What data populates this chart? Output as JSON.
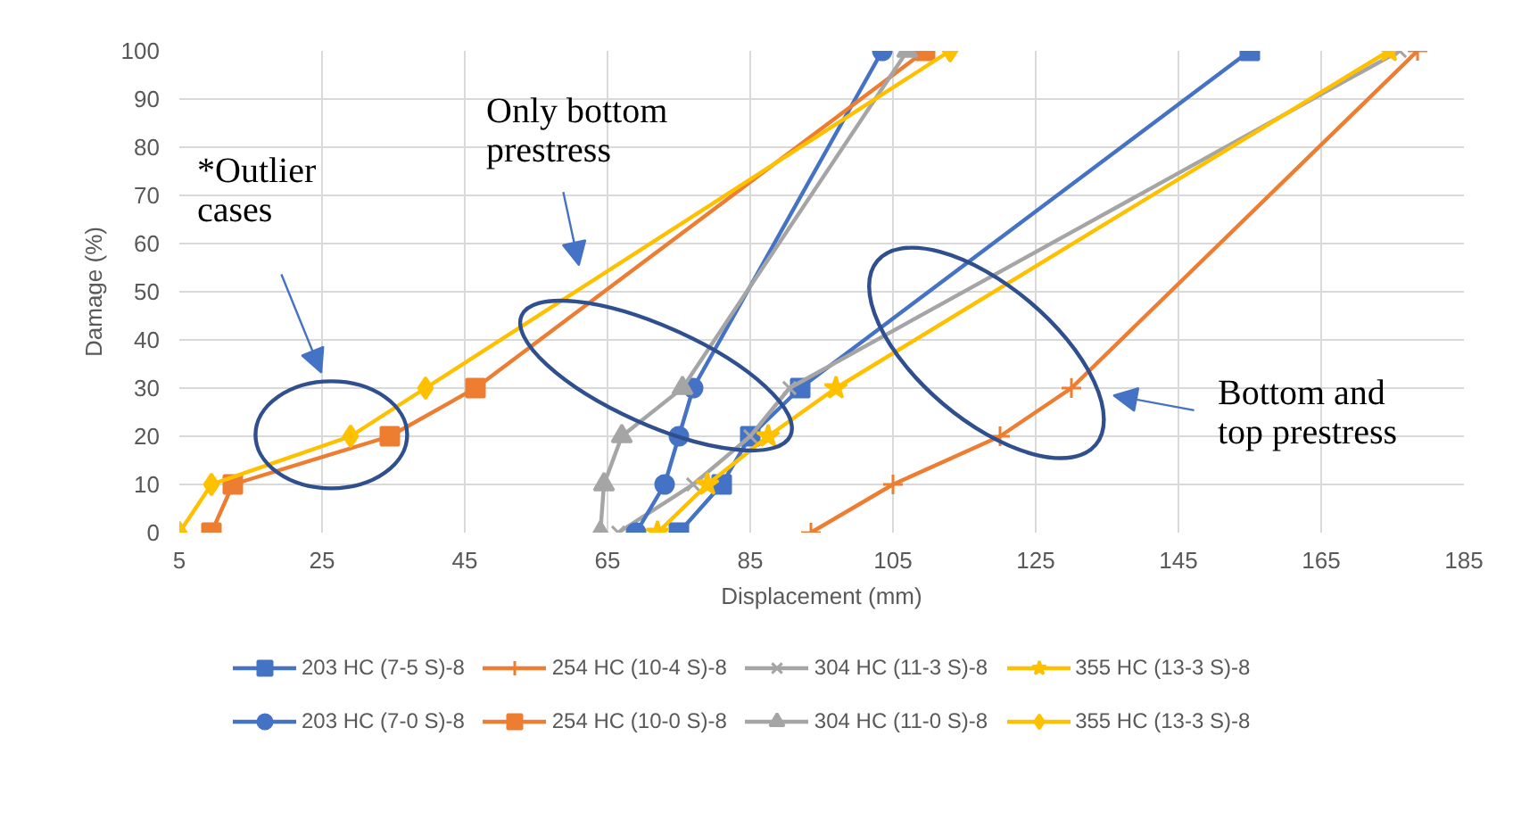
{
  "chart_data": {
    "type": "line",
    "xlabel": "Displacement (mm)",
    "ylabel": "Damage (%)",
    "xlim": [
      5,
      185
    ],
    "xticks": [
      5,
      25,
      45,
      65,
      85,
      105,
      125,
      145,
      165,
      185
    ],
    "ylim": [
      0,
      100
    ],
    "yticks": [
      0,
      10,
      20,
      30,
      40,
      50,
      60,
      70,
      80,
      90,
      100
    ],
    "grid": true,
    "legend": "bottom",
    "annotations": [
      "*Outlier cases",
      "Only bottom prestress",
      "Bottom and top prestress"
    ],
    "series": [
      {
        "name": "203 HC (7-5 S)-8",
        "color": "#4472c4",
        "marker": "square",
        "x": [
          75,
          81,
          85,
          92,
          155
        ],
        "values": [
          0,
          10,
          20,
          30,
          100
        ]
      },
      {
        "name": "254 HC (10-4 S)-8",
        "color": "#ed7d31",
        "marker": "cross",
        "x": [
          93.5,
          105,
          120,
          130,
          178.5
        ],
        "values": [
          0,
          10,
          20,
          30,
          100
        ]
      },
      {
        "name": "304 HC (11-3 S)-8",
        "color": "#a5a5a5",
        "marker": "x",
        "x": [
          66.5,
          77,
          85,
          90.5,
          176
        ],
        "values": [
          0,
          10,
          20,
          30,
          100
        ]
      },
      {
        "name": "355 HC (13-3 S)-8",
        "color": "#ffc000",
        "marker": "star",
        "x": [
          72,
          79,
          87.5,
          97,
          174.5
        ],
        "values": [
          0,
          10,
          20,
          30,
          100
        ]
      },
      {
        "name": "203 HC (7-0 S)-8",
        "color": "#4472c4",
        "marker": "circle",
        "x": [
          69,
          73,
          75,
          77,
          103.5
        ],
        "values": [
          0,
          10,
          20,
          30,
          100
        ]
      },
      {
        "name": "254 HC (10-0 S)-8",
        "color": "#ed7d31",
        "marker": "square",
        "x": [
          9.5,
          12.5,
          34.5,
          46.5,
          109.5
        ],
        "values": [
          0,
          10,
          20,
          30,
          100
        ]
      },
      {
        "name": "304 HC (11-0 S)-8",
        "color": "#a5a5a5",
        "marker": "triangle",
        "x": [
          64,
          64.5,
          67,
          75.5,
          107
        ],
        "values": [
          0,
          10,
          20,
          30,
          100
        ]
      },
      {
        "name": "355 HC (13-3 S)-8",
        "color": "#ffc000",
        "marker": "diamond",
        "x": [
          5,
          9.5,
          29,
          39.5,
          113
        ],
        "values": [
          0,
          10,
          20,
          30,
          100
        ]
      }
    ]
  }
}
